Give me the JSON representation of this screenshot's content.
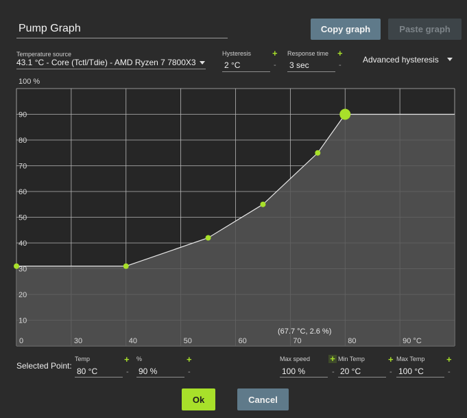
{
  "graph_title": "Pump Graph",
  "buttons": {
    "copy": "Copy graph",
    "paste": "Paste graph",
    "ok": "Ok",
    "cancel": "Cancel"
  },
  "temp_source": {
    "label": "Temperature source",
    "value": "43.1 °C - Core (Tctl/Tdie) - AMD Ryzen 7 7800X3"
  },
  "hysteresis": {
    "label": "Hysteresis",
    "value": "2 °C"
  },
  "response_time": {
    "label": "Response time",
    "value": "3 sec"
  },
  "advanced_hysteresis": "Advanced hysteresis",
  "symbols": {
    "plus": "+",
    "minus": "-"
  },
  "graph": {
    "y_unit_label": "100 %",
    "y_ticks": [
      "90",
      "80",
      "70",
      "60",
      "50",
      "40",
      "30",
      "20",
      "10"
    ],
    "x_ticks": [
      "0",
      "30",
      "40",
      "50",
      "60",
      "70",
      "80",
      "90 °C"
    ],
    "cursor_readout": "(67.7 °C, 2.6 %)",
    "colors": {
      "background": "#262626",
      "fill": "#555555",
      "line": "#e8e8e8",
      "point": "#a8e02a",
      "grid": "#b8b8b8"
    }
  },
  "chart_data": {
    "type": "area",
    "xlim": [
      20,
      100
    ],
    "ylim": [
      0,
      100
    ],
    "x": [
      20,
      40,
      55,
      65,
      75,
      80,
      100
    ],
    "y": [
      31,
      31,
      42,
      55,
      75,
      90,
      90
    ],
    "selected_point": [
      80,
      90
    ],
    "grid": true
  },
  "selected_point": {
    "label": "Selected Point:",
    "temp_label": "Temp",
    "temp_value": "80 °C",
    "pct_label": "%",
    "pct_value": "90 %"
  },
  "limits": {
    "max_speed_label": "Max speed",
    "max_speed_value": "100 %",
    "min_temp_label": "Min Temp",
    "min_temp_value": "20 °C",
    "max_temp_label": "Max Temp",
    "max_temp_value": "100 °C"
  }
}
